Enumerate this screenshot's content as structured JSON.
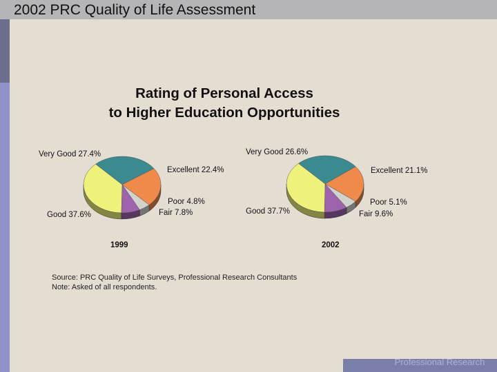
{
  "header": {
    "title": "2002 PRC Quality of Life Assessment"
  },
  "chart": {
    "title_line1": "Rating of Personal Access",
    "title_line2": "to Higher Education Opportunities"
  },
  "chart_data": [
    {
      "type": "pie",
      "title": "1999",
      "categories": [
        "Very Good",
        "Excellent",
        "Poor",
        "Fair",
        "Good"
      ],
      "values": [
        27.4,
        22.4,
        4.8,
        7.8,
        37.6
      ],
      "colors": [
        "#3a8a90",
        "#f08a4b",
        "#d2d2cc",
        "#9f63ae",
        "#eef27a"
      ],
      "labels": [
        "Very Good  27.4%",
        "Excellent  22.4%",
        "Poor  4.8%",
        "Fair  7.8%",
        "Good  37.6%"
      ]
    },
    {
      "type": "pie",
      "title": "2002",
      "categories": [
        "Very Good",
        "Excellent",
        "Poor",
        "Fair",
        "Good"
      ],
      "values": [
        26.6,
        21.1,
        5.1,
        9.6,
        37.7
      ],
      "colors": [
        "#3a8a90",
        "#f08a4b",
        "#d2d2cc",
        "#9f63ae",
        "#eef27a"
      ],
      "labels": [
        "Very Good  26.6%",
        "Excellent  21.1%",
        "Poor  5.1%",
        "Fair  9.6%",
        "Good  37.7%"
      ]
    }
  ],
  "notes": {
    "source": "Source: PRC Quality of Life Surveys, Professional Research Consultants",
    "note": "Note:     Asked of all respondents."
  },
  "footer": {
    "text": "Professional Research Consultants"
  }
}
